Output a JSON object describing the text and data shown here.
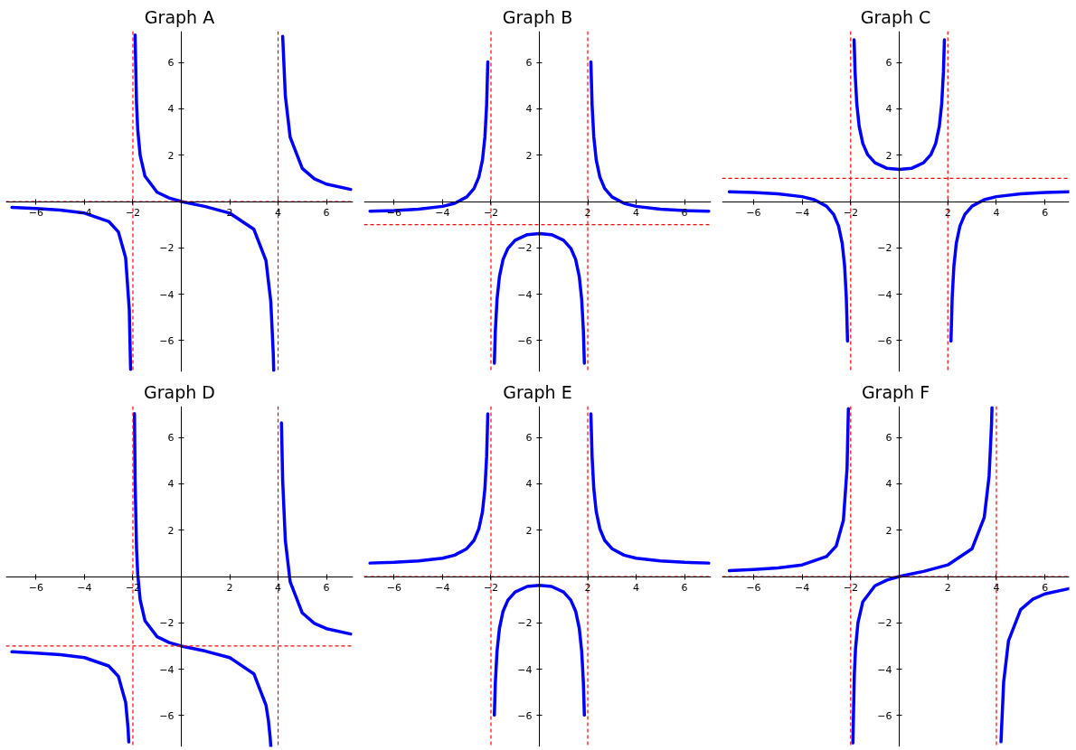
{
  "chart_data": [
    {
      "type": "line",
      "title": "Graph A",
      "color": "#0000ff",
      "xlim": [
        -7.25,
        7.1
      ],
      "ylim": [
        -7.35,
        7.35
      ],
      "xticks": [
        -6,
        -4,
        -2,
        2,
        4,
        6
      ],
      "yticks": [
        -6,
        -4,
        -2,
        2,
        4,
        6
      ],
      "x": [
        -7,
        -6,
        -5,
        -4,
        -3,
        -2.6,
        -2.3,
        -2.15,
        -2.095,
        -2,
        -1.91,
        -1.85,
        -1.8,
        -1.7,
        -1.5,
        -1,
        -0.5,
        0,
        1,
        2,
        3,
        3.5,
        3.7,
        3.8,
        3.82,
        4,
        4.19,
        4.3,
        4.5,
        5,
        5.5,
        6,
        7
      ],
      "values": [
        -0.25,
        -0.3,
        -0.37,
        -0.5,
        -0.86,
        -1.31,
        -2.43,
        -4.66,
        -7.24,
        null,
        7.18,
        4.22,
        3.1,
        1.99,
        1.09,
        0.4,
        0.15,
        0,
        -0.22,
        -0.5,
        -1.2,
        -2.55,
        -4.33,
        -6.55,
        -7.29,
        null,
        7.13,
        4.55,
        2.77,
        1.43,
        0.98,
        0.75,
        0.52
      ],
      "ref_lines": [
        {
          "axis": "x",
          "value": -2,
          "color": "#ff0000",
          "line_style": "dashed"
        },
        {
          "axis": "x",
          "value": 4,
          "color": "#ff0000",
          "line_style": "dashed"
        },
        {
          "axis": "y",
          "value": 0,
          "color": "#ff0000",
          "line_style": "dashed"
        }
      ]
    },
    {
      "type": "line",
      "title": "Graph B",
      "color": "#0000ff",
      "xlim": [
        -7.25,
        7.1
      ],
      "ylim": [
        -7.35,
        7.35
      ],
      "xticks": [
        -6,
        -4,
        -2,
        2,
        4,
        6
      ],
      "yticks": [
        -6,
        -4,
        -2,
        2,
        4,
        6
      ],
      "x": [
        -7,
        -6,
        -5,
        -4,
        -3.5,
        -3,
        -2.7,
        -2.5,
        -2.35,
        -2.25,
        -2.18,
        -2.13,
        -2,
        -1.86,
        -1.82,
        -1.75,
        -1.65,
        -1.5,
        -1.3,
        -1,
        -0.5,
        0,
        0.5,
        1,
        1.3,
        1.5,
        1.65,
        1.75,
        1.82,
        1.86,
        2,
        2.13,
        2.18,
        2.25,
        2.35,
        2.5,
        2.7,
        3,
        3.5,
        4,
        5,
        6,
        7
      ],
      "values": [
        -0.42,
        -0.39,
        -0.33,
        -0.21,
        -0.08,
        0.2,
        0.56,
        1.06,
        1.8,
        2.79,
        4.15,
        6.02,
        null,
        -6.98,
        -5.59,
        -4.23,
        -3.24,
        -2.5,
        -2.02,
        -1.67,
        -1.43,
        -1.38,
        -1.43,
        -1.67,
        -2.02,
        -2.5,
        -3.24,
        -4.23,
        -5.59,
        -6.98,
        null,
        6.02,
        4.15,
        2.79,
        1.8,
        1.06,
        0.56,
        0.2,
        -0.08,
        -0.21,
        -0.33,
        -0.39,
        -0.42
      ],
      "ref_lines": [
        {
          "axis": "x",
          "value": -2,
          "color": "#ff0000",
          "line_style": "dashed"
        },
        {
          "axis": "x",
          "value": 2,
          "color": "#ff0000",
          "line_style": "dashed"
        },
        {
          "axis": "y",
          "value": -1,
          "color": "#ff0000",
          "line_style": "dashed"
        }
      ]
    },
    {
      "type": "line",
      "title": "Graph C",
      "color": "#0000ff",
      "xlim": [
        -7.3,
        7.0
      ],
      "ylim": [
        -7.35,
        7.35
      ],
      "xticks": [
        -6,
        -4,
        -2,
        2,
        4,
        6
      ],
      "yticks": [
        -6,
        -4,
        -2,
        2,
        4,
        6
      ],
      "x": [
        -7,
        -6,
        -5,
        -4,
        -3.5,
        -3,
        -2.7,
        -2.5,
        -2.35,
        -2.25,
        -2.18,
        -2.13,
        -2,
        -1.86,
        -1.82,
        -1.75,
        -1.65,
        -1.5,
        -1.3,
        -1,
        -0.5,
        0,
        0.5,
        1,
        1.3,
        1.5,
        1.65,
        1.75,
        1.82,
        1.86,
        2,
        2.13,
        2.18,
        2.25,
        2.35,
        2.5,
        2.7,
        3,
        3.5,
        4,
        5,
        6,
        7
      ],
      "values": [
        0.42,
        0.39,
        0.33,
        0.21,
        0.08,
        -0.2,
        -0.56,
        -1.06,
        -1.8,
        -2.79,
        -4.15,
        -6.02,
        null,
        6.98,
        5.59,
        4.23,
        3.24,
        2.5,
        2.02,
        1.67,
        1.43,
        1.38,
        1.43,
        1.67,
        2.02,
        2.5,
        3.24,
        4.23,
        5.59,
        6.98,
        null,
        -6.02,
        -4.15,
        -2.79,
        -1.8,
        -1.06,
        -0.56,
        -0.2,
        0.08,
        0.21,
        0.33,
        0.39,
        0.42
      ],
      "ref_lines": [
        {
          "axis": "x",
          "value": -2,
          "color": "#ff0000",
          "line_style": "dashed"
        },
        {
          "axis": "x",
          "value": 2,
          "color": "#ff0000",
          "line_style": "dashed"
        },
        {
          "axis": "y",
          "value": 1,
          "color": "#ff0000",
          "line_style": "dashed"
        }
      ]
    },
    {
      "type": "line",
      "title": "Graph D",
      "color": "#0000ff",
      "xlim": [
        -7.25,
        7.1
      ],
      "ylim": [
        -7.35,
        7.35
      ],
      "xticks": [
        -6,
        -4,
        -2,
        2,
        4,
        6
      ],
      "yticks": [
        -6,
        -4,
        -2,
        2,
        4,
        6
      ],
      "x": [
        -7,
        -6,
        -5,
        -4,
        -3,
        -2.6,
        -2.3,
        -2.2,
        -2.17,
        -2,
        -1.935,
        -1.91,
        -1.85,
        -1.8,
        -1.7,
        -1.5,
        -1,
        -0.5,
        0,
        1,
        2,
        3,
        3.5,
        3.6,
        3.67,
        3.7,
        4,
        4.14,
        4.19,
        4.3,
        4.5,
        5,
        5.5,
        6,
        7
      ],
      "values": [
        -3.25,
        -3.3,
        -3.37,
        -3.5,
        -3.86,
        -4.31,
        -5.43,
        -6.55,
        -7.14,
        null,
        7.03,
        4.18,
        1.22,
        0.1,
        -1.01,
        -1.91,
        -2.6,
        -2.85,
        -3,
        -3.22,
        -3.5,
        -4.2,
        -5.55,
        -6.21,
        -6.92,
        -7.33,
        null,
        6.63,
        4.13,
        1.55,
        -0.23,
        -1.57,
        -2.02,
        -2.25,
        -2.48
      ],
      "ref_lines": [
        {
          "axis": "x",
          "value": -2,
          "color": "#ff0000",
          "line_style": "dashed"
        },
        {
          "axis": "x",
          "value": 4,
          "color": "#ff0000",
          "line_style": "dashed"
        },
        {
          "axis": "y",
          "value": -3,
          "color": "#ff0000",
          "line_style": "dashed"
        }
      ]
    },
    {
      "type": "line",
      "title": "Graph E",
      "color": "#0000ff",
      "xlim": [
        -7.25,
        7.1
      ],
      "ylim": [
        -7.35,
        7.35
      ],
      "xticks": [
        -6,
        -4,
        -2,
        2,
        4,
        6
      ],
      "yticks": [
        -6,
        -4,
        -2,
        2,
        4,
        6
      ],
      "x": [
        -7,
        -6,
        -5,
        -4,
        -3.5,
        -3,
        -2.7,
        -2.5,
        -2.35,
        -2.25,
        -2.18,
        -2.13,
        -2,
        -1.86,
        -1.82,
        -1.75,
        -1.65,
        -1.5,
        -1.3,
        -1,
        -0.5,
        0,
        0.5,
        1,
        1.3,
        1.5,
        1.65,
        1.75,
        1.82,
        1.86,
        2,
        2.13,
        2.18,
        2.25,
        2.35,
        2.5,
        2.7,
        3,
        3.5,
        4,
        5,
        6,
        7
      ],
      "values": [
        0.58,
        0.61,
        0.67,
        0.79,
        0.92,
        1.2,
        1.56,
        2.06,
        2.8,
        3.79,
        5.15,
        7.02,
        null,
        -5.98,
        -4.59,
        -3.23,
        -2.24,
        -1.5,
        -1.02,
        -0.67,
        -0.43,
        -0.38,
        -0.43,
        -0.67,
        -1.02,
        -1.5,
        -2.24,
        -3.23,
        -4.59,
        -5.98,
        null,
        7.02,
        5.15,
        3.79,
        2.8,
        2.06,
        1.56,
        1.2,
        0.92,
        0.79,
        0.67,
        0.61,
        0.58
      ],
      "ref_lines": [
        {
          "axis": "x",
          "value": -2,
          "color": "#ff0000",
          "line_style": "dashed"
        },
        {
          "axis": "x",
          "value": 2,
          "color": "#ff0000",
          "line_style": "dashed"
        },
        {
          "axis": "y",
          "value": 0,
          "color": "#ff0000",
          "line_style": "dashed"
        }
      ]
    },
    {
      "type": "line",
      "title": "Graph F",
      "color": "#0000ff",
      "xlim": [
        -7.3,
        7.0
      ],
      "ylim": [
        -7.35,
        7.35
      ],
      "xticks": [
        -6,
        -4,
        -2,
        2,
        4,
        6
      ],
      "yticks": [
        -6,
        -4,
        -2,
        2,
        4,
        6
      ],
      "x": [
        -7,
        -6,
        -5,
        -4,
        -3,
        -2.6,
        -2.3,
        -2.15,
        -2.095,
        -2,
        -1.91,
        -1.85,
        -1.8,
        -1.7,
        -1.5,
        -1,
        -0.5,
        0,
        1,
        2,
        3,
        3.5,
        3.7,
        3.8,
        3.82,
        4,
        4.19,
        4.3,
        4.5,
        5,
        5.5,
        6,
        7
      ],
      "values": [
        0.25,
        0.3,
        0.37,
        0.5,
        0.86,
        1.31,
        2.43,
        4.66,
        7.24,
        null,
        -7.18,
        -4.22,
        -3.1,
        -1.99,
        -1.09,
        -0.4,
        -0.15,
        0,
        0.22,
        0.5,
        1.2,
        2.55,
        4.33,
        6.55,
        7.29,
        null,
        -7.13,
        -4.55,
        -2.77,
        -1.43,
        -0.98,
        -0.75,
        -0.52
      ],
      "ref_lines": [
        {
          "axis": "x",
          "value": -2,
          "color": "#ff0000",
          "line_style": "dashed"
        },
        {
          "axis": "x",
          "value": 4,
          "color": "#ff0000",
          "line_style": "dashed"
        },
        {
          "axis": "y",
          "value": 0,
          "color": "#ff0000",
          "line_style": "dashed"
        }
      ]
    }
  ]
}
